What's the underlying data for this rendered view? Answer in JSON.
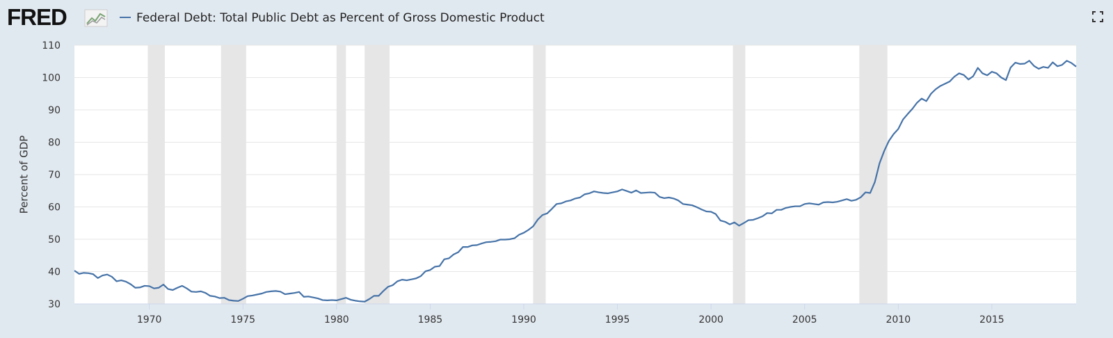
{
  "chart_data": {
    "type": "line",
    "brand": "FRED",
    "ylabel": "Percent of GDP",
    "xlim": [
      1966,
      2019.5
    ],
    "ylim": [
      30,
      110
    ],
    "xticks": [
      1970,
      1975,
      1980,
      1985,
      1990,
      1995,
      2000,
      2005,
      2010,
      2015
    ],
    "yticks": [
      30,
      40,
      50,
      60,
      70,
      80,
      90,
      100,
      110
    ],
    "grid": true,
    "recessions": [
      [
        1969.92,
        1970.83
      ],
      [
        1973.83,
        1975.17
      ],
      [
        1980.0,
        1980.5
      ],
      [
        1981.5,
        1982.83
      ],
      [
        1990.5,
        1991.17
      ],
      [
        2001.17,
        2001.83
      ],
      [
        2007.92,
        2009.42
      ]
    ],
    "recession_color": "#e6e6e6",
    "x": [
      1966,
      1966.25,
      1966.5,
      1966.75,
      1967,
      1967.25,
      1967.5,
      1967.75,
      1968,
      1968.25,
      1968.5,
      1968.75,
      1969,
      1969.25,
      1969.5,
      1969.75,
      1970,
      1970.25,
      1970.5,
      1970.75,
      1971,
      1971.25,
      1971.5,
      1971.75,
      1972,
      1972.25,
      1972.5,
      1972.75,
      1973,
      1973.25,
      1973.5,
      1973.75,
      1974,
      1974.25,
      1974.5,
      1974.75,
      1975,
      1975.25,
      1975.5,
      1975.75,
      1976,
      1976.25,
      1976.5,
      1976.75,
      1977,
      1977.25,
      1977.5,
      1977.75,
      1978,
      1978.25,
      1978.5,
      1978.75,
      1979,
      1979.25,
      1979.5,
      1979.75,
      1980,
      1980.25,
      1980.5,
      1980.75,
      1981,
      1981.25,
      1981.5,
      1981.75,
      1982,
      1982.25,
      1982.5,
      1982.75,
      1983,
      1983.25,
      1983.5,
      1983.75,
      1984,
      1984.25,
      1984.5,
      1984.75,
      1985,
      1985.25,
      1985.5,
      1985.75,
      1986,
      1986.25,
      1986.5,
      1986.75,
      1987,
      1987.25,
      1987.5,
      1987.75,
      1988,
      1988.25,
      1988.5,
      1988.75,
      1989,
      1989.25,
      1989.5,
      1989.75,
      1990,
      1990.25,
      1990.5,
      1990.75,
      1991,
      1991.25,
      1991.5,
      1991.75,
      1992,
      1992.25,
      1992.5,
      1992.75,
      1993,
      1993.25,
      1993.5,
      1993.75,
      1994,
      1994.25,
      1994.5,
      1994.75,
      1995,
      1995.25,
      1995.5,
      1995.75,
      1996,
      1996.25,
      1996.5,
      1996.75,
      1997,
      1997.25,
      1997.5,
      1997.75,
      1998,
      1998.25,
      1998.5,
      1998.75,
      1999,
      1999.25,
      1999.5,
      1999.75,
      2000,
      2000.25,
      2000.5,
      2000.75,
      2001,
      2001.25,
      2001.5,
      2001.75,
      2002,
      2002.25,
      2002.5,
      2002.75,
      2003,
      2003.25,
      2003.5,
      2003.75,
      2004,
      2004.25,
      2004.5,
      2004.75,
      2005,
      2005.25,
      2005.5,
      2005.75,
      2006,
      2006.25,
      2006.5,
      2006.75,
      2007,
      2007.25,
      2007.5,
      2007.75,
      2008,
      2008.25,
      2008.5,
      2008.75,
      2009,
      2009.25,
      2009.5,
      2009.75,
      2010,
      2010.25,
      2010.5,
      2010.75,
      2011,
      2011.25,
      2011.5,
      2011.75,
      2012,
      2012.25,
      2012.5,
      2012.75,
      2013,
      2013.25,
      2013.5,
      2013.75,
      2014,
      2014.25,
      2014.5,
      2014.75,
      2015,
      2015.25,
      2015.5,
      2015.75,
      2016,
      2016.25,
      2016.5,
      2016.75,
      2017,
      2017.25,
      2017.5,
      2017.75,
      2018,
      2018.25,
      2018.5,
      2018.75,
      2019,
      2019.25,
      2019.5
    ],
    "series": [
      {
        "name": "Federal Debt: Total Public Debt as Percent of Gross Domestic Product",
        "color": "#4572a7",
        "values": [
          40.3,
          39.3,
          39.6,
          39.5,
          39.2,
          38.0,
          38.8,
          39.1,
          38.4,
          37.0,
          37.3,
          36.9,
          36.1,
          35.0,
          35.1,
          35.6,
          35.5,
          34.8,
          35.0,
          36.0,
          34.6,
          34.3,
          35.0,
          35.6,
          34.8,
          33.8,
          33.7,
          33.9,
          33.4,
          32.5,
          32.3,
          31.8,
          31.9,
          31.2,
          31.0,
          30.9,
          31.6,
          32.4,
          32.6,
          32.9,
          33.2,
          33.7,
          33.9,
          34.0,
          33.8,
          33.0,
          33.2,
          33.4,
          33.7,
          32.2,
          32.3,
          32.0,
          31.7,
          31.2,
          31.1,
          31.2,
          31.1,
          31.5,
          31.9,
          31.3,
          31.0,
          30.8,
          30.7,
          31.5,
          32.5,
          32.5,
          34.0,
          35.3,
          35.8,
          37.0,
          37.5,
          37.3,
          37.6,
          37.9,
          38.6,
          40.1,
          40.5,
          41.5,
          41.7,
          43.8,
          44.1,
          45.3,
          46.0,
          47.6,
          47.6,
          48.1,
          48.2,
          48.7,
          49.1,
          49.2,
          49.4,
          49.9,
          49.9,
          50.0,
          50.3,
          51.4,
          52.0,
          52.9,
          54.0,
          56.1,
          57.5,
          58.0,
          59.4,
          60.9,
          61.1,
          61.7,
          62.0,
          62.6,
          62.9,
          63.9,
          64.2,
          64.8,
          64.5,
          64.3,
          64.2,
          64.5,
          64.8,
          65.4,
          64.9,
          64.4,
          65.1,
          64.3,
          64.4,
          64.5,
          64.4,
          63.1,
          62.7,
          62.9,
          62.6,
          62.0,
          60.9,
          60.7,
          60.5,
          59.9,
          59.2,
          58.6,
          58.5,
          57.8,
          55.8,
          55.4,
          54.6,
          55.2,
          54.2,
          55.0,
          55.9,
          56.0,
          56.5,
          57.1,
          58.1,
          58.0,
          59.1,
          59.1,
          59.7,
          60.0,
          60.2,
          60.2,
          60.9,
          61.1,
          60.9,
          60.7,
          61.4,
          61.5,
          61.4,
          61.6,
          62.0,
          62.4,
          61.9,
          62.2,
          63.0,
          64.5,
          64.3,
          67.7,
          73.5,
          77.3,
          80.4,
          82.5,
          84.1,
          87.0,
          88.7,
          90.3,
          92.2,
          93.5,
          92.7,
          95.0,
          96.4,
          97.4,
          98.1,
          98.8,
          100.3,
          101.3,
          100.8,
          99.4,
          100.4,
          103.0,
          101.3,
          100.7,
          101.8,
          101.3,
          100.0,
          99.2,
          103.1,
          104.6,
          104.2,
          104.3,
          105.2,
          103.6,
          102.7,
          103.3,
          103.0,
          104.7,
          103.5,
          103.9,
          105.2,
          104.5,
          103.4
        ]
      }
    ]
  }
}
